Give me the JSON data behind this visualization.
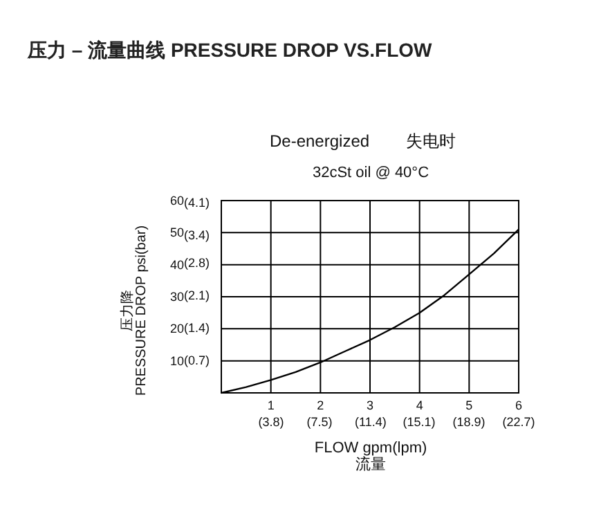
{
  "chart_data": {
    "type": "line",
    "title": "压力 – 流量曲线 PRESSURE DROP VS.FLOW",
    "subtitle": "De-energized        失电时",
    "annotations": [
      "32cSt oil @ 40°C"
    ],
    "xlabel": "FLOW gpm(lpm)\n流量",
    "ylabel": "压力降\nPRESSURE DROP psi(bar)",
    "xlim": [
      0,
      6
    ],
    "ylim": [
      0,
      60
    ],
    "xticks": [
      1,
      2,
      3,
      4,
      5,
      6
    ],
    "x2lim": [
      0,
      22.7
    ],
    "x2ticks": [
      {
        "value": 3.8,
        "label": "(3.8)"
      },
      {
        "value": 7.5,
        "label": "(7.5)"
      },
      {
        "value": 11.4,
        "label": "(11.4)"
      },
      {
        "value": 15.1,
        "label": "(15.1)"
      },
      {
        "value": 18.9,
        "label": "(18.9)"
      },
      {
        "value": 22.7,
        "label": "(22.7)"
      }
    ],
    "yticks": [
      10,
      20,
      30,
      40,
      50,
      60
    ],
    "y2lim": [
      0,
      4.14
    ],
    "y2ticks": [
      {
        "value": 0.7,
        "label": "(0.7)"
      },
      {
        "value": 1.4,
        "label": "(1.4)"
      },
      {
        "value": 2.1,
        "label": "(2.1)"
      },
      {
        "value": 2.8,
        "label": "(2.8)"
      },
      {
        "value": 3.4,
        "label": "(3.4)"
      },
      {
        "value": 4.1,
        "label": "(4.1)"
      }
    ],
    "grid": true,
    "marker": "none",
    "line_style": "solid",
    "series": [
      {
        "color": "#000000",
        "x": [
          0,
          0.5,
          1,
          1.5,
          2,
          2.5,
          3,
          3.5,
          4,
          4.5,
          5,
          5.5,
          6
        ],
        "values": [
          0,
          1.8,
          4,
          6.5,
          9.5,
          13,
          16.5,
          20.5,
          25,
          30.5,
          37,
          43.5,
          51
        ]
      }
    ]
  }
}
